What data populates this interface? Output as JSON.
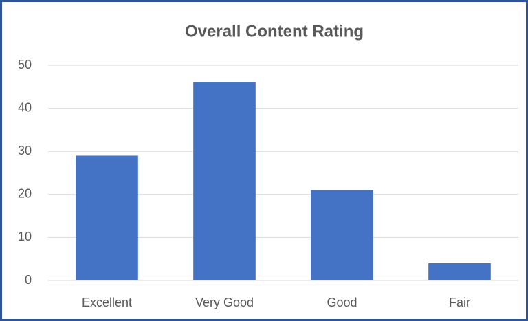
{
  "chart_data": {
    "type": "bar",
    "title": "Overall Content Rating",
    "categories": [
      "Excellent",
      "Very Good",
      "Good",
      "Fair"
    ],
    "values": [
      29,
      46,
      21,
      4
    ],
    "color": "#4472c4",
    "ylim": [
      0,
      50
    ],
    "yticks": [
      0,
      10,
      20,
      30,
      40,
      50
    ],
    "grid": true
  }
}
